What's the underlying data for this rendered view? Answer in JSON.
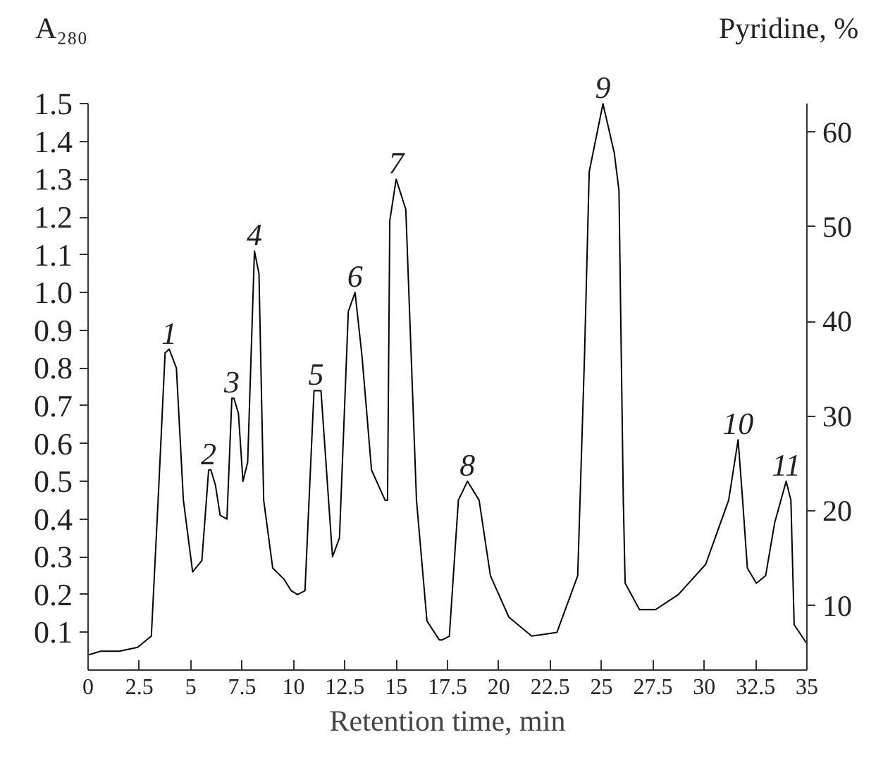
{
  "chart_data": {
    "type": "line",
    "xlabel": "Retention time, min",
    "ylabel": "A₂₈₀",
    "y2label": "Pyridine, %",
    "xlim": [
      0,
      35
    ],
    "xticks": [
      0,
      2.5,
      5,
      7.5,
      10,
      12.5,
      15,
      17.5,
      20,
      22.5,
      25,
      27.5,
      30,
      32.5,
      35
    ],
    "ylim": [
      0,
      1.5
    ],
    "yticks": [
      0.1,
      0.2,
      0.3,
      0.4,
      0.5,
      0.6,
      0.7,
      0.8,
      0.9,
      {
        "value": 1.0,
        "label": "1.0"
      },
      1.1,
      1.2,
      1.3,
      1.4,
      1.5
    ],
    "y2lim": [
      3.2,
      63
    ],
    "y2ticks": [
      10,
      20,
      30,
      40,
      50,
      60
    ],
    "grid": false,
    "marker": "none",
    "line_style": "solid",
    "series": [
      {
        "color": "#000000",
        "x": [
          0,
          0.62,
          1.52,
          2.41,
          3.08,
          3.41,
          3.75,
          3.95,
          4.3,
          4.64,
          5.09,
          5.54,
          5.87,
          5.98,
          6.2,
          6.43,
          6.76,
          7.0,
          7.1,
          7.32,
          7.54,
          7.77,
          8.1,
          8.32,
          8.55,
          8.99,
          9.55,
          9.89,
          10.2,
          10.56,
          11.0,
          11.34,
          11.9,
          12.24,
          12.67,
          13.0,
          13.34,
          13.8,
          14.46,
          14.58,
          14.69,
          15.0,
          15.47,
          15.99,
          16.5,
          17.1,
          17.25,
          17.59,
          18.03,
          18.47,
          19.04,
          19.59,
          20.49,
          21.6,
          22.83,
          23.84,
          24.17,
          24.4,
          25.07,
          25.62,
          25.85,
          26.06,
          26.15,
          26.85,
          27.63,
          28.74,
          30.07,
          31.19,
          31.65,
          31.87,
          32.1,
          32.54,
          32.99,
          33.43,
          33.99,
          34.22,
          34.38,
          35
        ],
        "values": [
          0.04,
          0.05,
          0.05,
          0.06,
          0.09,
          0.45,
          0.84,
          0.85,
          0.8,
          0.45,
          0.26,
          0.29,
          0.53,
          0.53,
          0.49,
          0.41,
          0.4,
          0.72,
          0.72,
          0.68,
          0.5,
          0.55,
          1.11,
          1.05,
          0.45,
          0.27,
          0.24,
          0.21,
          0.2,
          0.21,
          0.74,
          0.74,
          0.3,
          0.35,
          0.95,
          1.0,
          0.83,
          0.53,
          0.45,
          0.45,
          1.19,
          1.3,
          1.22,
          0.45,
          0.13,
          0.08,
          0.08,
          0.09,
          0.45,
          0.5,
          0.45,
          0.25,
          0.14,
          0.09,
          0.1,
          0.25,
          0.83,
          1.32,
          1.5,
          1.37,
          1.27,
          0.45,
          0.23,
          0.16,
          0.16,
          0.2,
          0.28,
          0.45,
          0.61,
          0.45,
          0.27,
          0.23,
          0.25,
          0.39,
          0.5,
          0.45,
          0.12,
          0.07
        ]
      }
    ],
    "annotations": [
      {
        "text": "1",
        "x": 3.95,
        "y": 0.85
      },
      {
        "text": "2",
        "x": 5.87,
        "y": 0.53
      },
      {
        "text": "3",
        "x": 7.0,
        "y": 0.72
      },
      {
        "text": "4",
        "x": 8.1,
        "y": 1.11
      },
      {
        "text": "5",
        "x": 11.1,
        "y": 0.74
      },
      {
        "text": "6",
        "x": 13.0,
        "y": 1.0
      },
      {
        "text": "7",
        "x": 15.0,
        "y": 1.3
      },
      {
        "text": "8",
        "x": 18.47,
        "y": 0.5
      },
      {
        "text": "9",
        "x": 25.07,
        "y": 1.5
      },
      {
        "text": "10",
        "x": 31.65,
        "y": 0.61
      },
      {
        "text": "11",
        "x": 33.99,
        "y": 0.5
      }
    ]
  }
}
